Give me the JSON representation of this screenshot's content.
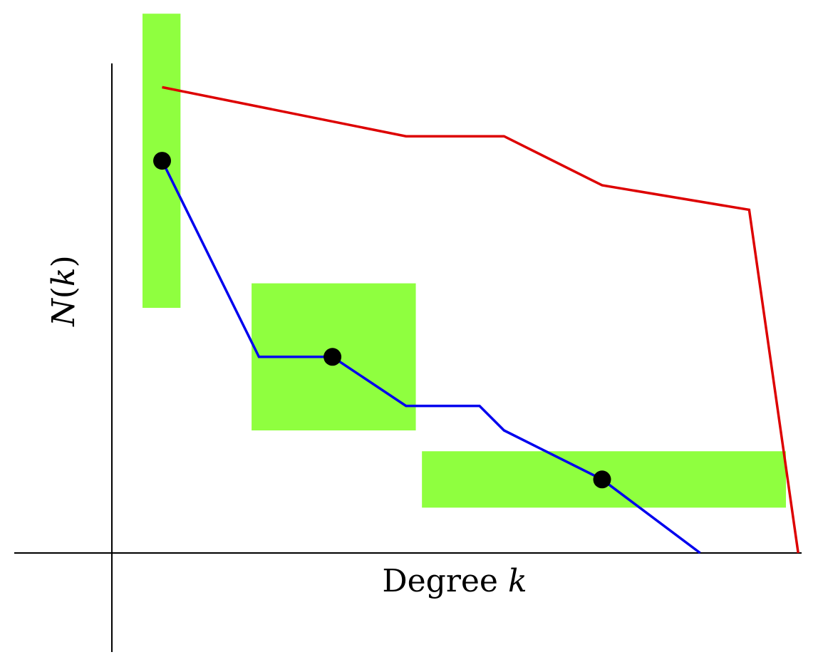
{
  "chart_data": {
    "type": "line",
    "title": "",
    "xlabel": {
      "text": "Degree",
      "var": "k"
    },
    "ylabel": {
      "text": "",
      "var": "N",
      "arg": "k"
    },
    "xlim": [
      0,
      28
    ],
    "ylim": [
      0,
      20
    ],
    "grid": false,
    "legend": "none",
    "highlight_color": "#8fff3f",
    "regions": [
      {
        "x": [
          1.25,
          2.8
        ],
        "y": [
          10.0,
          22.0
        ]
      },
      {
        "x": [
          5.7,
          12.4
        ],
        "y": [
          5.0,
          11.0
        ]
      },
      {
        "x": [
          12.65,
          27.5
        ],
        "y": [
          1.85,
          4.15
        ]
      }
    ],
    "series": [
      {
        "color": "#dd0000",
        "x": [
          2.05,
          12.0,
          16.0,
          20.0,
          26.0,
          28.0
        ],
        "y": [
          19.0,
          17.0,
          17.0,
          15.0,
          14.0,
          0.0
        ]
      },
      {
        "color": "#0000ee",
        "x": [
          2.05,
          6.0,
          9.0,
          12.0,
          15.0,
          16.0,
          20.0,
          24.0
        ],
        "y": [
          16.0,
          8.0,
          8.0,
          6.0,
          6.0,
          5.0,
          3.0,
          0.0
        ]
      }
    ],
    "markers": [
      {
        "x": 2.05,
        "y": 16.0
      },
      {
        "x": 9.0,
        "y": 8.0
      },
      {
        "x": 20.0,
        "y": 3.0
      }
    ]
  }
}
